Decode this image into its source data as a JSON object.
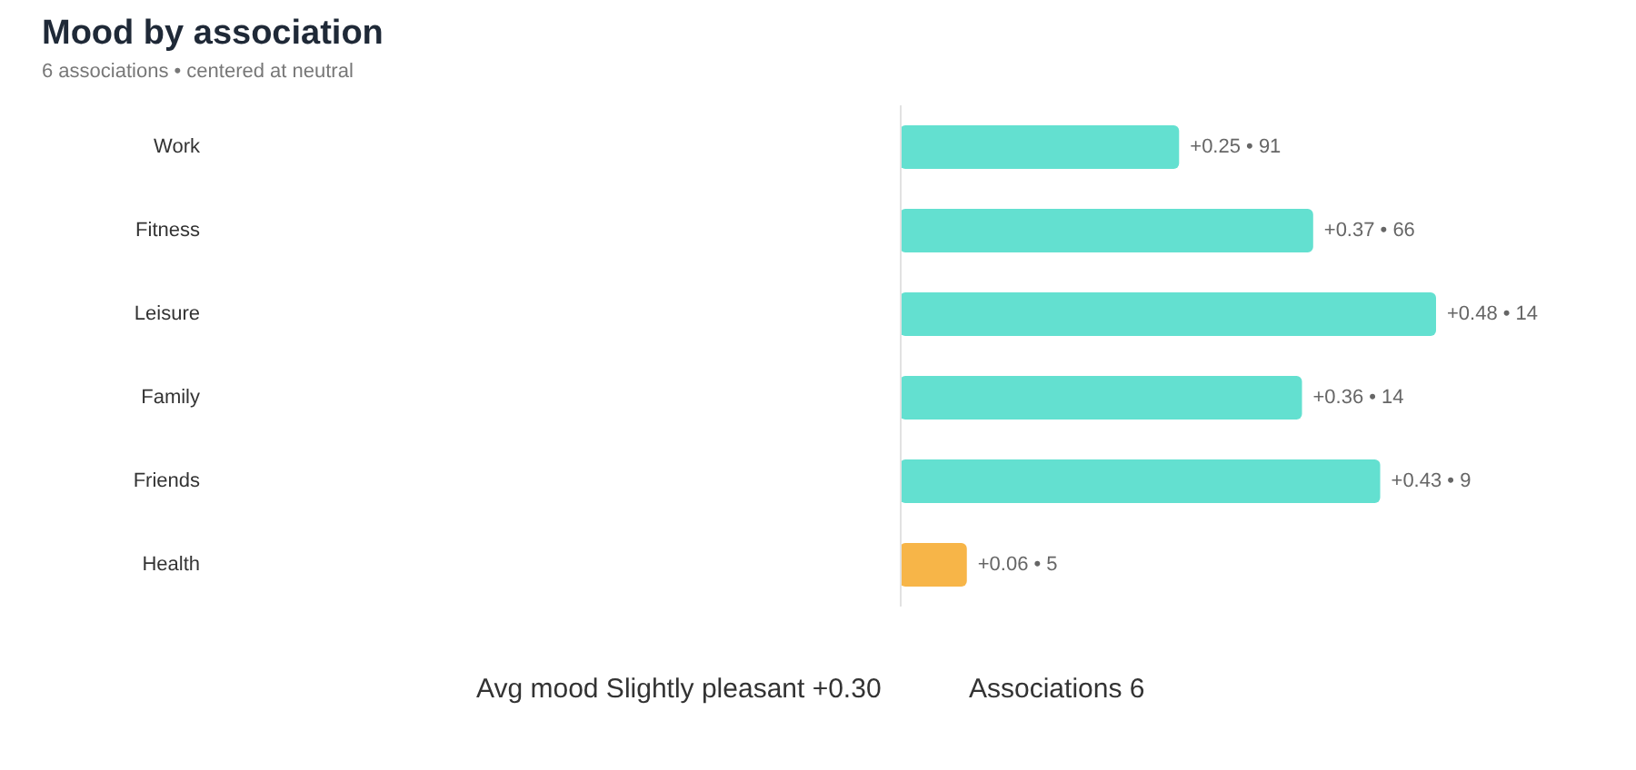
{
  "chart_data": {
    "type": "bar",
    "orientation": "horizontal",
    "title": "Mood by association",
    "subtitle": "6 associations • centered at neutral",
    "categories": [
      "Work",
      "Fitness",
      "Leisure",
      "Family",
      "Friends",
      "Health"
    ],
    "values": [
      0.25,
      0.37,
      0.48,
      0.36,
      0.43,
      0.06
    ],
    "colors": [
      "#63e0d0",
      "#63e0d0",
      "#63e0d0",
      "#63e0d0",
      "#63e0d0",
      "#f7b548"
    ],
    "value_labels": [
      "+0.25 • 91",
      "+0.37 • 66",
      "+0.48 • 14",
      "+0.36 • 14",
      "+0.43 • 9",
      "+0.06 • 5"
    ],
    "tick_labels": "y",
    "ref_lines": [
      {
        "axis": "x",
        "value": 0,
        "color": "#e2e2e2"
      }
    ],
    "annotations": [
      "Avg mood Slightly pleasant +0.30",
      "Associations 6"
    ]
  }
}
